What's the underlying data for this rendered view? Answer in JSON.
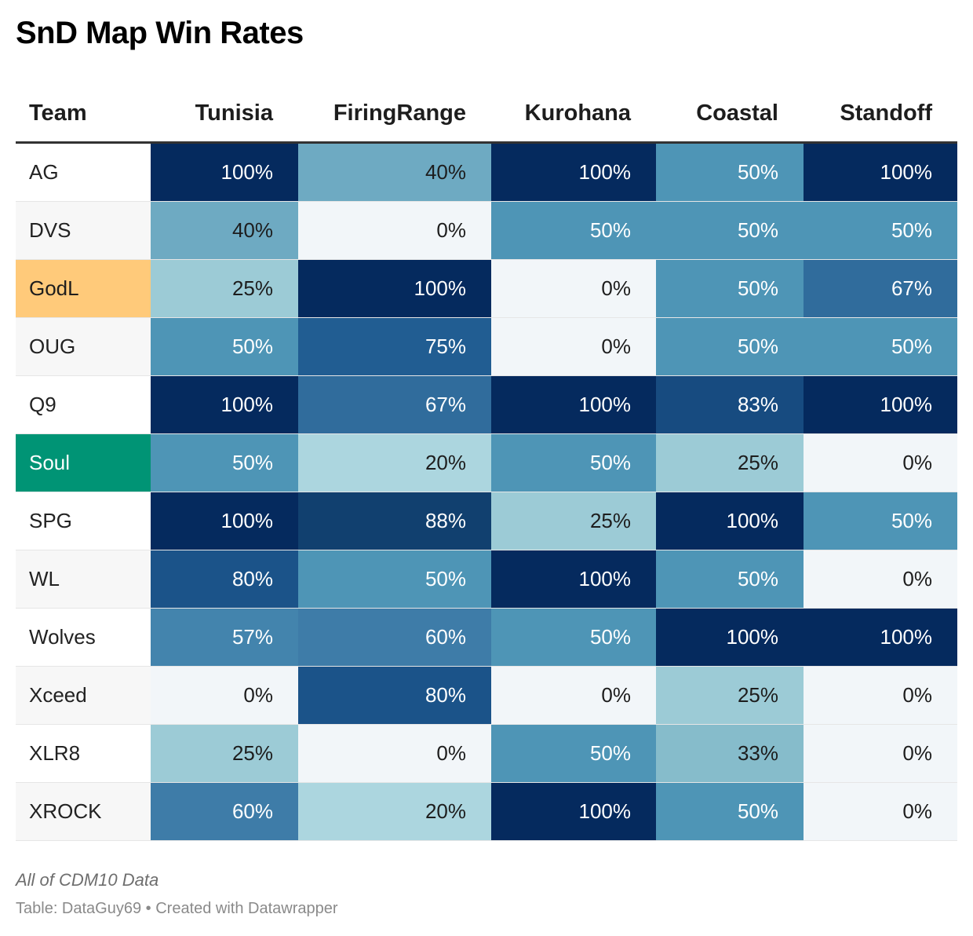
{
  "chart_data": {
    "type": "table",
    "title": "SnD Map Win Rates",
    "columns": [
      "Team",
      "Tunisia",
      "FiringRange",
      "Kurohana",
      "Coastal",
      "Standoff"
    ],
    "rows": [
      {
        "team": "AG",
        "values": [
          100,
          40,
          100,
          50,
          100
        ],
        "labels": [
          "100%",
          "40%",
          "100%",
          "50%",
          "100%"
        ]
      },
      {
        "team": "DVS",
        "values": [
          40,
          0,
          50,
          50,
          50
        ],
        "labels": [
          "40%",
          "0%",
          "50%",
          "50%",
          "50%"
        ]
      },
      {
        "team": "GodL",
        "values": [
          25,
          100,
          0,
          50,
          67
        ],
        "labels": [
          "25%",
          "100%",
          "0%",
          "50%",
          "67%"
        ],
        "highlight": "#ffca7a"
      },
      {
        "team": "OUG",
        "values": [
          50,
          75,
          0,
          50,
          50
        ],
        "labels": [
          "50%",
          "75%",
          "0%",
          "50%",
          "50%"
        ]
      },
      {
        "team": "Q9",
        "values": [
          100,
          67,
          100,
          83,
          100
        ],
        "labels": [
          "100%",
          "67%",
          "100%",
          "83%",
          "100%"
        ]
      },
      {
        "team": "Soul",
        "values": [
          50,
          20,
          50,
          25,
          0
        ],
        "labels": [
          "50%",
          "20%",
          "50%",
          "25%",
          "0%"
        ],
        "highlight": "#009475"
      },
      {
        "team": "SPG",
        "values": [
          100,
          88,
          25,
          100,
          50
        ],
        "labels": [
          "100%",
          "88%",
          "25%",
          "100%",
          "50%"
        ]
      },
      {
        "team": "WL",
        "values": [
          80,
          50,
          100,
          50,
          0
        ],
        "labels": [
          "80%",
          "50%",
          "100%",
          "50%",
          "0%"
        ]
      },
      {
        "team": "Wolves",
        "values": [
          57,
          60,
          50,
          100,
          100
        ],
        "labels": [
          "57%",
          "60%",
          "50%",
          "100%",
          "100%"
        ]
      },
      {
        "team": "Xceed",
        "values": [
          0,
          80,
          0,
          25,
          0
        ],
        "labels": [
          "0%",
          "80%",
          "0%",
          "25%",
          "0%"
        ]
      },
      {
        "team": "XLR8",
        "values": [
          25,
          0,
          50,
          33,
          0
        ],
        "labels": [
          "25%",
          "0%",
          "50%",
          "33%",
          "0%"
        ]
      },
      {
        "team": "XROCK",
        "values": [
          60,
          20,
          100,
          50,
          0
        ],
        "labels": [
          "60%",
          "20%",
          "100%",
          "50%",
          "0%"
        ]
      }
    ],
    "color_scale": {
      "range": [
        0,
        100
      ],
      "stops": [
        {
          "v": 0,
          "color": "#f2f6f9"
        },
        {
          "v": 20,
          "color": "#acd6df"
        },
        {
          "v": 25,
          "color": "#9ccbd6"
        },
        {
          "v": 33,
          "color": "#86bccb"
        },
        {
          "v": 40,
          "color": "#6eaac2"
        },
        {
          "v": 50,
          "color": "#4e95b6"
        },
        {
          "v": 57,
          "color": "#4384ad"
        },
        {
          "v": 60,
          "color": "#3e7ca8"
        },
        {
          "v": 67,
          "color": "#306c9c"
        },
        {
          "v": 75,
          "color": "#215d92"
        },
        {
          "v": 80,
          "color": "#1b5389"
        },
        {
          "v": 83,
          "color": "#174b80"
        },
        {
          "v": 88,
          "color": "#11406f"
        },
        {
          "v": 100,
          "color": "#052a5e"
        }
      ],
      "dark_text": "#1d1d1d",
      "light_text": "#ffffff"
    },
    "notes": "All of CDM10 Data",
    "source": "Table: DataGuy69 • Created with Datawrapper"
  }
}
